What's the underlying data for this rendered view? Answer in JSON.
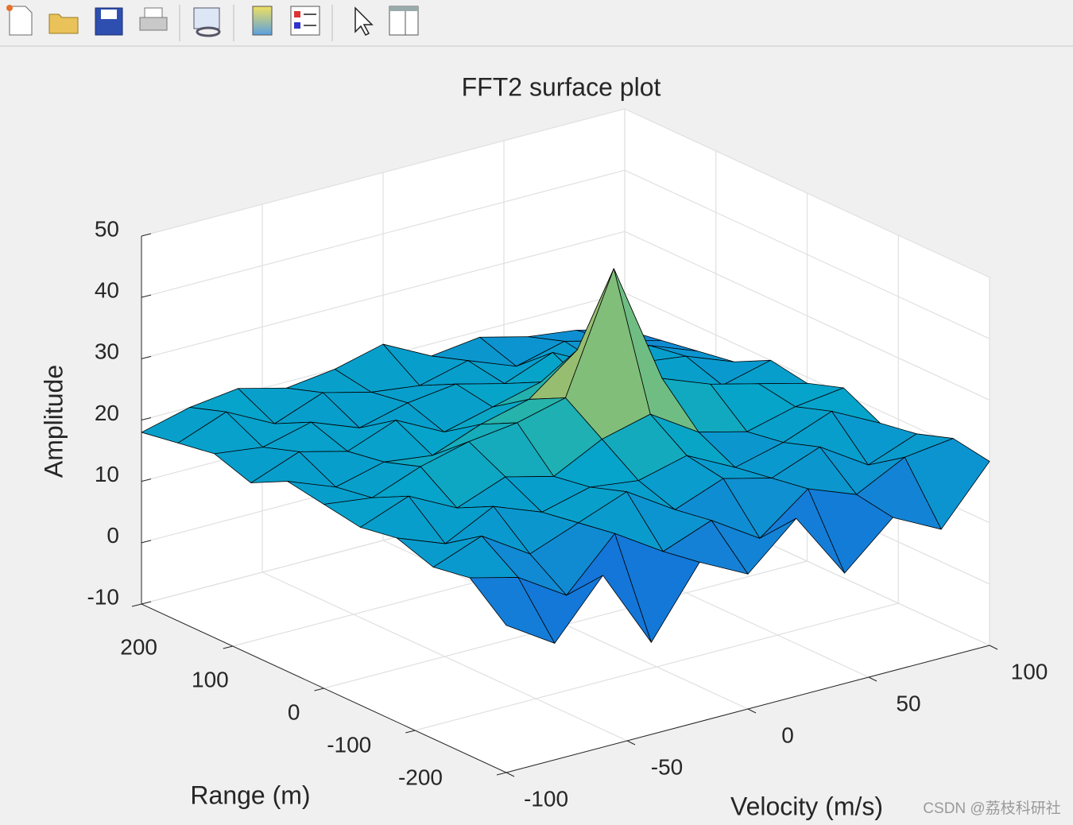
{
  "chart_data": {
    "type": "surface",
    "title": "FFT2 surface plot",
    "xlabel": "Velocity (m/s)",
    "ylabel": "Range (m)",
    "zlabel": "Amplitude",
    "x": [
      -100,
      -80,
      -60,
      -40,
      -20,
      0,
      20,
      40,
      60,
      80,
      100
    ],
    "y": [
      -200,
      -160,
      -120,
      -80,
      -40,
      0,
      40,
      80,
      120,
      160,
      200
    ],
    "z": [
      [
        14,
        9,
        18,
        5,
        16,
        12,
        19,
        8,
        15,
        11,
        20
      ],
      [
        19,
        17,
        12,
        20,
        15,
        18,
        13,
        19,
        16,
        20,
        21
      ],
      [
        18,
        21,
        16,
        19,
        22,
        17,
        20,
        18,
        21,
        16,
        19
      ],
      [
        20,
        17,
        21,
        18,
        20,
        19,
        21,
        17,
        19,
        22,
        18
      ],
      [
        19,
        22,
        18,
        21,
        19,
        23,
        25,
        20,
        18,
        20,
        21
      ],
      [
        20,
        19,
        22,
        24,
        25,
        27,
        46,
        26,
        23,
        21,
        19
      ],
      [
        21,
        18,
        20,
        19,
        22,
        24,
        30,
        21,
        20,
        18,
        20
      ],
      [
        18,
        21,
        19,
        22,
        18,
        20,
        22,
        19,
        21,
        20,
        17
      ],
      [
        20,
        19,
        21,
        18,
        20,
        21,
        19,
        22,
        18,
        19,
        16
      ],
      [
        19,
        22,
        18,
        21,
        19,
        18,
        20,
        17,
        19,
        17,
        15
      ],
      [
        18,
        20,
        21,
        19,
        20,
        22,
        18,
        19,
        17,
        16,
        14
      ]
    ],
    "xlim": [
      -100,
      100
    ],
    "ylim": [
      -200,
      200
    ],
    "zlim": [
      -10,
      50
    ],
    "xticks": [
      -100,
      -50,
      0,
      50,
      100
    ],
    "yticks": [
      -200,
      -100,
      0,
      100,
      200
    ],
    "zticks": [
      -10,
      0,
      10,
      20,
      30,
      40,
      50
    ],
    "grid": true,
    "colormap": [
      "#352a87",
      "#0f5cdd",
      "#1481d6",
      "#06a4ca",
      "#2eb7a4",
      "#87bf77",
      "#d1bb59",
      "#fec832",
      "#f9fb0e"
    ],
    "edgecolor": "#000000"
  },
  "watermark": "CSDN @荔枝科研社"
}
